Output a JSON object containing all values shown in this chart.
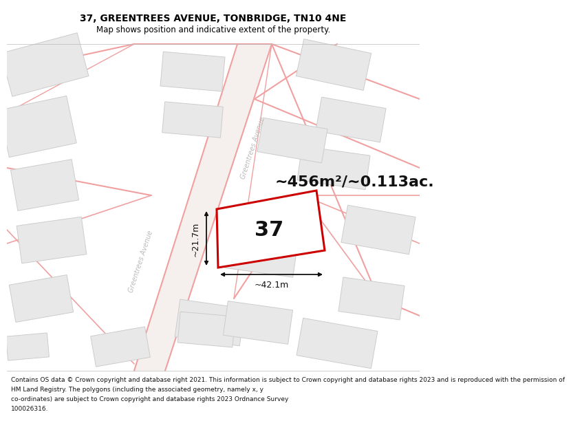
{
  "title_line1": "37, GREENTREES AVENUE, TONBRIDGE, TN10 4NE",
  "title_line2": "Map shows position and indicative extent of the property.",
  "footer_lines": [
    "Contains OS data © Crown copyright and database right 2021. This information is subject to Crown copyright and database rights 2023 and is reproduced with the permission of",
    "HM Land Registry. The polygons (including the associated geometry, namely x, y",
    "co-ordinates) are subject to Crown copyright and database rights 2023 Ordnance Survey",
    "100026316."
  ],
  "area_text": "~456m²/~0.113ac.",
  "property_number": "37",
  "dim_width": "~42.1m",
  "dim_height": "~21.7m",
  "road_label1": "Greentrees Avenue",
  "road_label2": "Greentrees Avenue",
  "map_bg": "#ffffff",
  "building_fill": "#e8e8e8",
  "building_edge": "#cccccc",
  "road_color": "#f0a0a0",
  "road_fill": "#f8f0f0",
  "property_fill": "#ffffff",
  "property_edge": "#cc0000",
  "title_bg": "#ffffff",
  "footer_bg": "#ffffff",
  "title_fontsize": 10,
  "subtitle_fontsize": 8.5,
  "area_fontsize": 16,
  "dim_fontsize": 9,
  "road_label_fontsize": 7,
  "num_fontsize": 22,
  "footer_fontsize": 6.5
}
